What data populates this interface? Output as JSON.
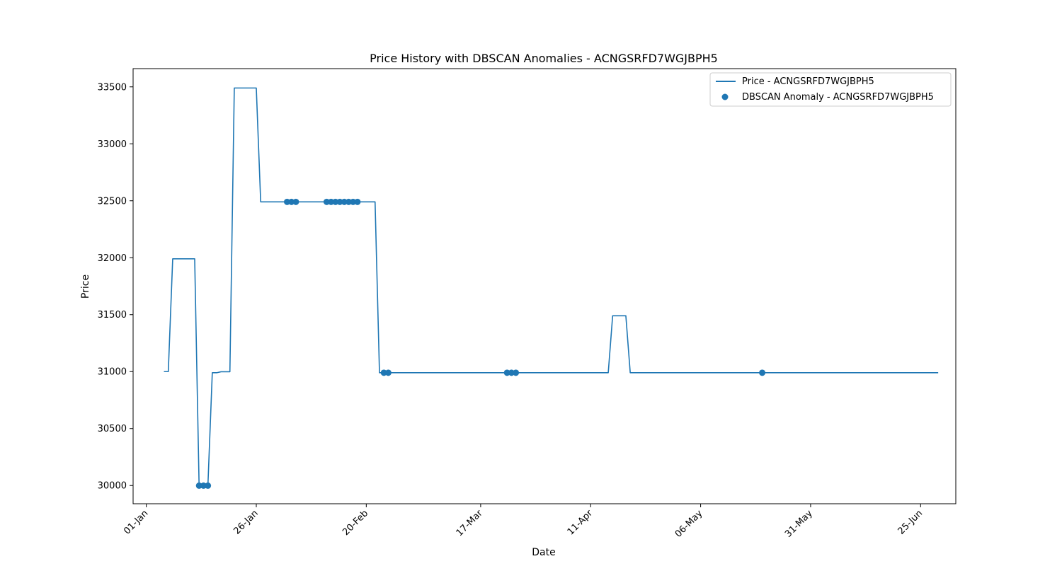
{
  "chart_data": {
    "type": "line",
    "title": "Price History with DBSCAN Anomalies - ACNGSRFD7WGJBPH5",
    "xlabel": "Date",
    "ylabel": "Price",
    "xlim": [
      "2023-12-29",
      "2024-07-03"
    ],
    "ylim": [
      29840,
      33660
    ],
    "x_ticks": [
      {
        "date": "2024-01-01",
        "label": "01-Jan"
      },
      {
        "date": "2024-01-26",
        "label": "26-Jan"
      },
      {
        "date": "2024-02-20",
        "label": "20-Feb"
      },
      {
        "date": "2024-03-17",
        "label": "17-Mar"
      },
      {
        "date": "2024-04-11",
        "label": "11-Apr"
      },
      {
        "date": "2024-05-06",
        "label": "06-May"
      },
      {
        "date": "2024-05-31",
        "label": "31-May"
      },
      {
        "date": "2024-06-25",
        "label": "25-Jun"
      }
    ],
    "y_ticks": [
      30000,
      30500,
      31000,
      31500,
      32000,
      32500,
      33000,
      33500
    ],
    "legend_position": "top-right",
    "grid": false,
    "series": [
      {
        "name": "Price - ACNGSRFD7WGJBPH5",
        "kind": "line",
        "color": "#1f77b4",
        "points": [
          {
            "x": "2024-01-05",
            "y": 31000
          },
          {
            "x": "2024-01-06",
            "y": 31000
          },
          {
            "x": "2024-01-07",
            "y": 31990
          },
          {
            "x": "2024-01-12",
            "y": 31990
          },
          {
            "x": "2024-01-13",
            "y": 29999
          },
          {
            "x": "2024-01-15",
            "y": 29999
          },
          {
            "x": "2024-01-16",
            "y": 30990
          },
          {
            "x": "2024-01-17",
            "y": 30990
          },
          {
            "x": "2024-01-18",
            "y": 30999
          },
          {
            "x": "2024-01-20",
            "y": 30999
          },
          {
            "x": "2024-01-21",
            "y": 33490
          },
          {
            "x": "2024-01-26",
            "y": 33490
          },
          {
            "x": "2024-01-27",
            "y": 32490
          },
          {
            "x": "2024-02-22",
            "y": 32490
          },
          {
            "x": "2024-02-23",
            "y": 30990
          },
          {
            "x": "2024-04-15",
            "y": 30990
          },
          {
            "x": "2024-04-16",
            "y": 31490
          },
          {
            "x": "2024-04-19",
            "y": 31490
          },
          {
            "x": "2024-04-20",
            "y": 30990
          },
          {
            "x": "2024-06-29",
            "y": 30990
          }
        ]
      },
      {
        "name": "DBSCAN Anomaly - ACNGSRFD7WGJBPH5",
        "kind": "scatter",
        "color": "#1f77b4",
        "points": [
          {
            "x": "2024-01-13",
            "y": 29999
          },
          {
            "x": "2024-01-14",
            "y": 29999
          },
          {
            "x": "2024-01-15",
            "y": 29999
          },
          {
            "x": "2024-02-02",
            "y": 32490
          },
          {
            "x": "2024-02-03",
            "y": 32490
          },
          {
            "x": "2024-02-04",
            "y": 32490
          },
          {
            "x": "2024-02-11",
            "y": 32490
          },
          {
            "x": "2024-02-12",
            "y": 32490
          },
          {
            "x": "2024-02-13",
            "y": 32490
          },
          {
            "x": "2024-02-14",
            "y": 32490
          },
          {
            "x": "2024-02-15",
            "y": 32490
          },
          {
            "x": "2024-02-16",
            "y": 32490
          },
          {
            "x": "2024-02-17",
            "y": 32490
          },
          {
            "x": "2024-02-18",
            "y": 32490
          },
          {
            "x": "2024-02-24",
            "y": 30990
          },
          {
            "x": "2024-02-25",
            "y": 30990
          },
          {
            "x": "2024-03-23",
            "y": 30990
          },
          {
            "x": "2024-03-24",
            "y": 30990
          },
          {
            "x": "2024-03-25",
            "y": 30990
          },
          {
            "x": "2024-05-20",
            "y": 30990
          }
        ]
      }
    ]
  }
}
